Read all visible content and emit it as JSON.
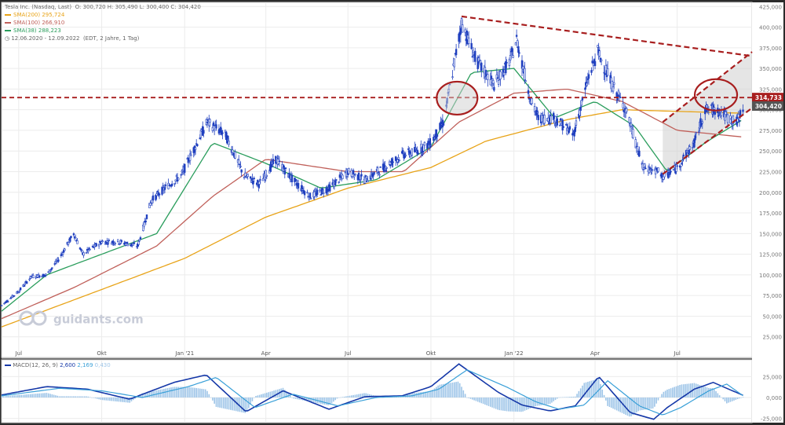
{
  "legend": {
    "instrument": "Tesla Inc. (Nasdaq, Last)",
    "ohlc": "O: 300,720  H: 305,490  L: 300,400  C: 304,420",
    "sma200_label": "SMA(200)",
    "sma200_value": "295,724",
    "sma100_label": "SMA(100)",
    "sma100_value": "266,910",
    "sma38_label": "SMA(38)",
    "sma38_value": "288,223",
    "range": "12.06.2020 - 12.09.2022",
    "range_meta": "(EDT, 2 Jahre, 1 Tag)"
  },
  "macd_legend": {
    "label": "MACD(12, 26, 9)",
    "v1": "2,600",
    "v2": "2,169",
    "v3": "0,430"
  },
  "watermark": "guidants.com",
  "price_tags": {
    "resistance": "314,733",
    "last": "304,420"
  },
  "colors": {
    "candle": "#1f3fbf",
    "sma200": "#e8a317",
    "sma100": "#c0605a",
    "sma38": "#2a9d5c",
    "trend": "#a81e1e",
    "macd_line": "#1538a8",
    "signal_line": "#3aa0d8",
    "histogram": "#9ec5e8",
    "channel_fill": "#cfcfcf"
  },
  "chart_data": [
    {
      "type": "line",
      "title": "Tesla Inc. (Nasdaq, Last)",
      "yaxis_side": "right",
      "ylim": [
        0,
        430000
      ],
      "ytick_labels": [
        "25,000",
        "50,000",
        "75,000",
        "100,000",
        "125,000",
        "150,000",
        "175,000",
        "200,000",
        "225,000",
        "250,000",
        "275,000",
        "300,000",
        "325,000",
        "350,000",
        "375,000",
        "400,000",
        "425,000"
      ],
      "ytick_values": [
        25000,
        50000,
        75000,
        100000,
        125000,
        150000,
        175000,
        200000,
        225000,
        250000,
        275000,
        300000,
        325000,
        350000,
        375000,
        400000,
        425000
      ],
      "xtick_labels": [
        "Jul",
        "Okt",
        "Jan '21",
        "Apr",
        "Jul",
        "Okt",
        "Jan '22",
        "Apr",
        "Jul"
      ],
      "xtick_dates": [
        "2020-07-01",
        "2020-10-01",
        "2021-01-01",
        "2021-04-01",
        "2021-07-01",
        "2021-10-01",
        "2022-01-01",
        "2022-04-01",
        "2022-07-01"
      ],
      "x_range": [
        "2020-06-12",
        "2022-09-12"
      ],
      "grid": true,
      "series": [
        {
          "name": "price",
          "style": "candles",
          "x": [
            "2020-06-12",
            "2020-07-01",
            "2020-07-15",
            "2020-08-01",
            "2020-08-15",
            "2020-08-31",
            "2020-09-10",
            "2020-10-01",
            "2020-10-20",
            "2020-11-10",
            "2020-11-25",
            "2020-12-10",
            "2020-12-28",
            "2021-01-08",
            "2021-01-26",
            "2021-02-15",
            "2021-03-08",
            "2021-03-25",
            "2021-04-12",
            "2021-05-01",
            "2021-05-20",
            "2021-06-10",
            "2021-07-01",
            "2021-07-20",
            "2021-08-10",
            "2021-08-30",
            "2021-09-15",
            "2021-10-01",
            "2021-10-15",
            "2021-10-25",
            "2021-11-04",
            "2021-11-20",
            "2021-12-10",
            "2021-12-28",
            "2022-01-04",
            "2022-01-20",
            "2022-01-28",
            "2022-02-15",
            "2022-03-08",
            "2022-03-25",
            "2022-04-04",
            "2022-04-20",
            "2022-05-05",
            "2022-05-24",
            "2022-06-10",
            "2022-06-16",
            "2022-07-01",
            "2022-07-20",
            "2022-08-01",
            "2022-08-15",
            "2022-08-26",
            "2022-09-06",
            "2022-09-12"
          ],
          "values": [
            63000,
            80000,
            98000,
            100000,
            120000,
            150000,
            125000,
            140000,
            140000,
            135000,
            190000,
            205000,
            220000,
            245000,
            285000,
            270000,
            220000,
            210000,
            240000,
            215000,
            195000,
            205000,
            225000,
            215000,
            230000,
            245000,
            250000,
            260000,
            285000,
            345000,
            405000,
            360000,
            330000,
            360000,
            385000,
            310000,
            290000,
            290000,
            270000,
            340000,
            370000,
            330000,
            300000,
            230000,
            225000,
            218000,
            230000,
            260000,
            300000,
            300000,
            290000,
            285000,
            304420
          ]
        },
        {
          "name": "SMA(200)",
          "x": [
            "2020-06-12",
            "2020-09-01",
            "2021-01-01",
            "2021-04-01",
            "2021-07-01",
            "2021-10-01",
            "2021-12-01",
            "2022-03-01",
            "2022-05-01",
            "2022-07-01",
            "2022-09-12"
          ],
          "values": [
            37000,
            70000,
            120000,
            170000,
            205000,
            230000,
            262000,
            288000,
            300000,
            298000,
            295724
          ]
        },
        {
          "name": "SMA(100)",
          "x": [
            "2020-06-12",
            "2020-09-01",
            "2020-12-01",
            "2021-02-01",
            "2021-04-01",
            "2021-07-01",
            "2021-09-01",
            "2021-11-01",
            "2022-01-01",
            "2022-03-01",
            "2022-05-01",
            "2022-07-01",
            "2022-09-12"
          ],
          "values": [
            47000,
            85000,
            135000,
            195000,
            240000,
            225000,
            225000,
            285000,
            320000,
            325000,
            310000,
            275000,
            266910
          ]
        },
        {
          "name": "SMA(38)",
          "x": [
            "2020-06-12",
            "2020-08-01",
            "2020-10-01",
            "2020-12-01",
            "2021-02-01",
            "2021-04-01",
            "2021-06-01",
            "2021-08-01",
            "2021-10-01",
            "2021-11-15",
            "2022-01-01",
            "2022-02-15",
            "2022-04-01",
            "2022-05-15",
            "2022-06-20",
            "2022-08-01",
            "2022-09-12"
          ],
          "values": [
            56000,
            100000,
            125000,
            150000,
            260000,
            235000,
            205000,
            215000,
            255000,
            345000,
            350000,
            290000,
            310000,
            280000,
            225000,
            260000,
            288223
          ]
        }
      ],
      "annotations": [
        {
          "type": "hline",
          "value": 314733,
          "label": "314,733"
        },
        {
          "type": "price_tag",
          "value": 304420,
          "label": "304,420"
        }
      ]
    },
    {
      "type": "line",
      "title": "MACD(12, 26, 9)",
      "ylim": [
        -30,
        45
      ],
      "ytick_labels": [
        "-25,000",
        "0,000",
        "25,000"
      ],
      "ytick_values": [
        -25,
        0,
        25
      ],
      "series": [
        {
          "name": "MACD",
          "x": [
            "2020-06-12",
            "2020-08-01",
            "2020-09-15",
            "2020-11-01",
            "2020-12-20",
            "2021-01-25",
            "2021-03-10",
            "2021-04-20",
            "2021-06-10",
            "2021-07-20",
            "2021-08-30",
            "2021-10-01",
            "2021-11-01",
            "2021-12-15",
            "2022-01-10",
            "2022-02-10",
            "2022-03-10",
            "2022-04-05",
            "2022-05-10",
            "2022-06-05",
            "2022-06-20",
            "2022-07-20",
            "2022-08-10",
            "2022-09-12"
          ],
          "values": [
            3,
            13,
            10,
            -2,
            18,
            27,
            -17,
            8,
            -14,
            1,
            2,
            13,
            40,
            6,
            -9,
            -16,
            -10,
            25,
            -18,
            -26,
            -12,
            10,
            18,
            2.6
          ]
        },
        {
          "name": "Signal",
          "x": [
            "2020-06-12",
            "2020-08-15",
            "2020-10-01",
            "2020-11-15",
            "2021-01-05",
            "2021-02-05",
            "2021-03-20",
            "2021-05-01",
            "2021-06-20",
            "2021-08-01",
            "2021-09-10",
            "2021-10-10",
            "2021-11-10",
            "2021-12-25",
            "2022-01-25",
            "2022-02-20",
            "2022-03-20",
            "2022-04-15",
            "2022-05-20",
            "2022-06-15",
            "2022-07-05",
            "2022-08-05",
            "2022-08-25",
            "2022-09-12"
          ],
          "values": [
            2,
            11,
            8,
            0,
            13,
            24,
            -12,
            4,
            -10,
            0,
            2,
            10,
            33,
            12,
            -5,
            -14,
            -9,
            20,
            -10,
            -21,
            -12,
            8,
            16,
            2.169
          ]
        }
      ],
      "annotations": [
        {
          "type": "histogram",
          "name": "Histogram",
          "last": 0.43
        }
      ]
    }
  ]
}
